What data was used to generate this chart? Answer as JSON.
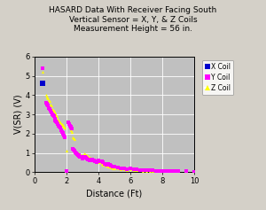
{
  "title_line1": "HASARD Data With Receiver Facing South",
  "title_line2": "Vertical Sensor = X, Y, & Z Coils",
  "title_line3": "Measurement Height = 56 in.",
  "xlabel": "Distance (Ft)",
  "ylabel": "V(SR) (V)",
  "xlim": [
    0,
    10
  ],
  "ylim": [
    0.0,
    6.0
  ],
  "xticks": [
    0,
    2,
    4,
    6,
    8,
    10
  ],
  "yticks": [
    0.0,
    1.0,
    2.0,
    3.0,
    4.0,
    5.0,
    6.0
  ],
  "bg_color": "#c0c0c0",
  "fig_color": "#d4d0c8",
  "x_coil": {
    "x": [
      0.5
    ],
    "y": [
      4.6
    ],
    "color": "#0000cc",
    "marker": "s",
    "label": "X Coil"
  },
  "y_coil": {
    "x": [
      0.5,
      0.7,
      0.75,
      0.8,
      0.85,
      0.9,
      0.95,
      1.0,
      1.05,
      1.1,
      1.15,
      1.2,
      1.25,
      1.3,
      1.35,
      1.4,
      1.45,
      1.5,
      1.55,
      1.6,
      1.65,
      1.7,
      1.75,
      1.8,
      1.85,
      1.9,
      2.0,
      2.1,
      2.15,
      2.2,
      2.25,
      2.3,
      2.35,
      2.4,
      2.45,
      2.5,
      2.55,
      2.6,
      2.65,
      2.7,
      2.75,
      2.8,
      2.85,
      2.9,
      2.95,
      3.0,
      3.1,
      3.15,
      3.2,
      3.25,
      3.3,
      3.35,
      3.4,
      3.45,
      3.5,
      3.6,
      3.7,
      3.8,
      3.9,
      4.0,
      4.1,
      4.2,
      4.3,
      4.4,
      4.5,
      4.6,
      4.7,
      4.8,
      4.9,
      5.0,
      5.2,
      5.4,
      5.6,
      5.8,
      6.0,
      6.2,
      6.4,
      6.6,
      6.8,
      7.0,
      7.2,
      7.4,
      7.6,
      7.8,
      8.0,
      8.2,
      8.4,
      8.6,
      8.8,
      9.0,
      9.5,
      10.0
    ],
    "y": [
      5.4,
      3.6,
      3.55,
      3.5,
      3.45,
      3.35,
      3.3,
      3.2,
      3.1,
      3.0,
      2.95,
      2.9,
      2.8,
      2.7,
      2.65,
      2.6,
      2.5,
      2.4,
      2.35,
      2.3,
      2.2,
      2.1,
      2.05,
      2.0,
      1.9,
      1.8,
      0.05,
      2.6,
      2.5,
      2.4,
      2.35,
      2.3,
      2.25,
      1.2,
      1.15,
      1.1,
      1.05,
      1.0,
      0.95,
      0.9,
      0.88,
      0.85,
      0.82,
      0.8,
      0.78,
      0.7,
      0.82,
      0.8,
      0.75,
      0.72,
      0.7,
      0.68,
      0.65,
      0.63,
      0.6,
      0.65,
      0.6,
      0.55,
      0.5,
      0.6,
      0.55,
      0.55,
      0.5,
      0.45,
      0.4,
      0.45,
      0.4,
      0.35,
      0.3,
      0.3,
      0.25,
      0.2,
      0.2,
      0.15,
      0.2,
      0.15,
      0.15,
      0.1,
      0.1,
      0.1,
      0.1,
      0.1,
      0.08,
      0.08,
      0.07,
      0.07,
      0.06,
      0.06,
      0.05,
      0.05,
      0.04,
      0.03
    ],
    "color": "#ff00ff",
    "marker": "s",
    "label": "Y Coil"
  },
  "z_coil": {
    "x": [
      0.5,
      0.7,
      0.75,
      0.8,
      0.85,
      0.9,
      0.95,
      1.0,
      1.05,
      1.1,
      1.15,
      1.2,
      1.25,
      1.3,
      1.35,
      1.4,
      1.45,
      1.5,
      1.55,
      1.6,
      1.65,
      1.7,
      1.75,
      1.8,
      1.85,
      1.9,
      2.0,
      2.1,
      2.15,
      2.2,
      2.25,
      2.3,
      2.35,
      2.4,
      2.45,
      2.5,
      2.55,
      2.6,
      2.65,
      2.7,
      2.75,
      2.8,
      2.85,
      2.9,
      2.95,
      3.0,
      3.1,
      3.15,
      3.2,
      3.25,
      3.3,
      3.35,
      3.4,
      3.45,
      3.5,
      3.6,
      3.7,
      3.8,
      3.9,
      4.0,
      4.1,
      4.2,
      4.3,
      4.4,
      4.5,
      4.6,
      4.7,
      4.8,
      4.9,
      5.0,
      5.2,
      5.4,
      5.6,
      5.8,
      6.0,
      6.2,
      6.4,
      6.6,
      6.8,
      7.0,
      7.2,
      7.4,
      7.6,
      7.8,
      8.0,
      8.2,
      8.4,
      8.6,
      8.8,
      9.0,
      9.5,
      10.0
    ],
    "y": [
      5.2,
      4.0,
      3.95,
      3.9,
      3.85,
      3.75,
      3.7,
      3.5,
      3.45,
      3.3,
      3.25,
      3.2,
      3.1,
      3.05,
      2.95,
      2.9,
      2.8,
      2.7,
      2.65,
      2.6,
      2.5,
      2.5,
      2.45,
      2.4,
      2.35,
      2.3,
      1.1,
      2.6,
      2.5,
      2.4,
      2.3,
      2.2,
      2.1,
      1.8,
      1.75,
      1.7,
      1.1,
      1.05,
      1.02,
      1.0,
      0.98,
      0.95,
      0.92,
      0.9,
      0.88,
      0.85,
      1.0,
      0.95,
      0.9,
      0.87,
      0.85,
      0.82,
      0.8,
      0.77,
      0.75,
      0.7,
      0.65,
      0.6,
      0.55,
      0.5,
      0.5,
      0.45,
      0.4,
      0.4,
      0.35,
      0.3,
      0.3,
      0.25,
      0.22,
      0.2,
      0.18,
      0.16,
      0.14,
      0.12,
      0.15,
      0.12,
      0.1,
      0.1,
      0.08,
      0.08,
      0.08,
      0.07,
      0.07,
      0.06,
      0.06,
      0.06,
      0.05,
      0.05,
      0.05,
      0.05,
      0.04,
      0.03
    ],
    "color": "#ffff00",
    "marker": "^",
    "label": "Z Coil"
  }
}
